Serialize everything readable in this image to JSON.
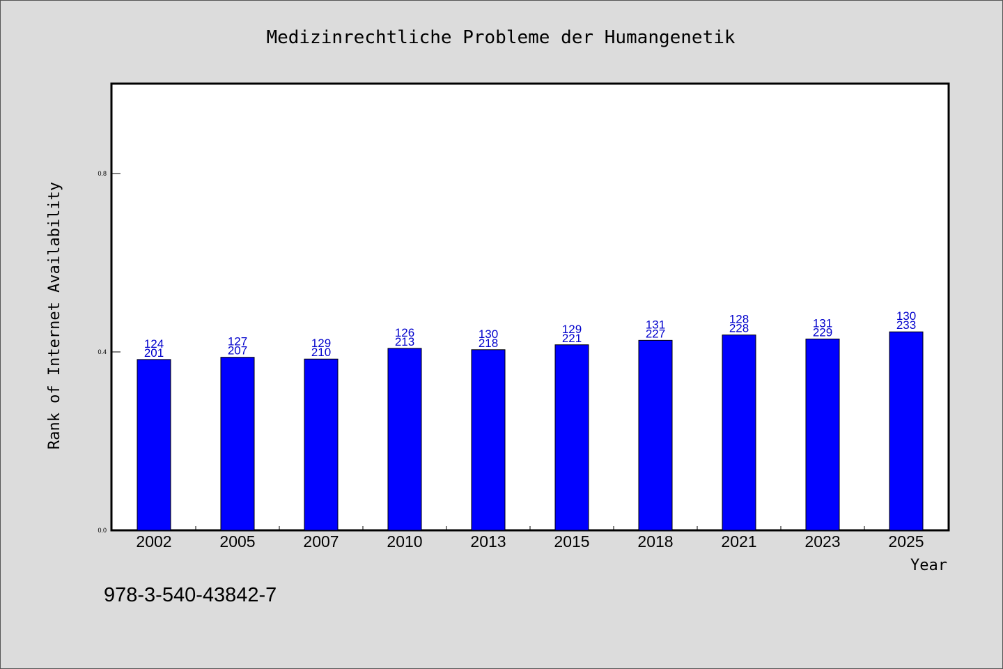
{
  "colors": {
    "background": "#dcdcdc",
    "plot_background": "#ffffff",
    "bar_fill": "#0000ff",
    "bar_label": "#0000cc",
    "axis": "#000000"
  },
  "footer_text": "978-3-540-43842-7",
  "chart_data": {
    "type": "bar",
    "title": "Medizinrechtliche Probleme der Humangenetik",
    "xlabel": "Year",
    "ylabel": "Rank of Internet Availability",
    "ylim": [
      0,
      1
    ],
    "yticks": [
      0.0,
      0.4,
      0.8
    ],
    "ytick_labels": [
      "0.0",
      "0.4",
      "0.8"
    ],
    "grid": false,
    "categories": [
      "2002",
      "2005",
      "2007",
      "2010",
      "2013",
      "2015",
      "2018",
      "2021",
      "2023",
      "2025"
    ],
    "values": [
      0.383,
      0.388,
      0.384,
      0.408,
      0.405,
      0.416,
      0.426,
      0.438,
      0.429,
      0.445
    ],
    "top_labels": [
      "124",
      "127",
      "129",
      "126",
      "130",
      "129",
      "131",
      "128",
      "131",
      "130"
    ],
    "bottom_labels": [
      "201",
      "207",
      "210",
      "213",
      "218",
      "221",
      "227",
      "228",
      "229",
      "233"
    ]
  }
}
